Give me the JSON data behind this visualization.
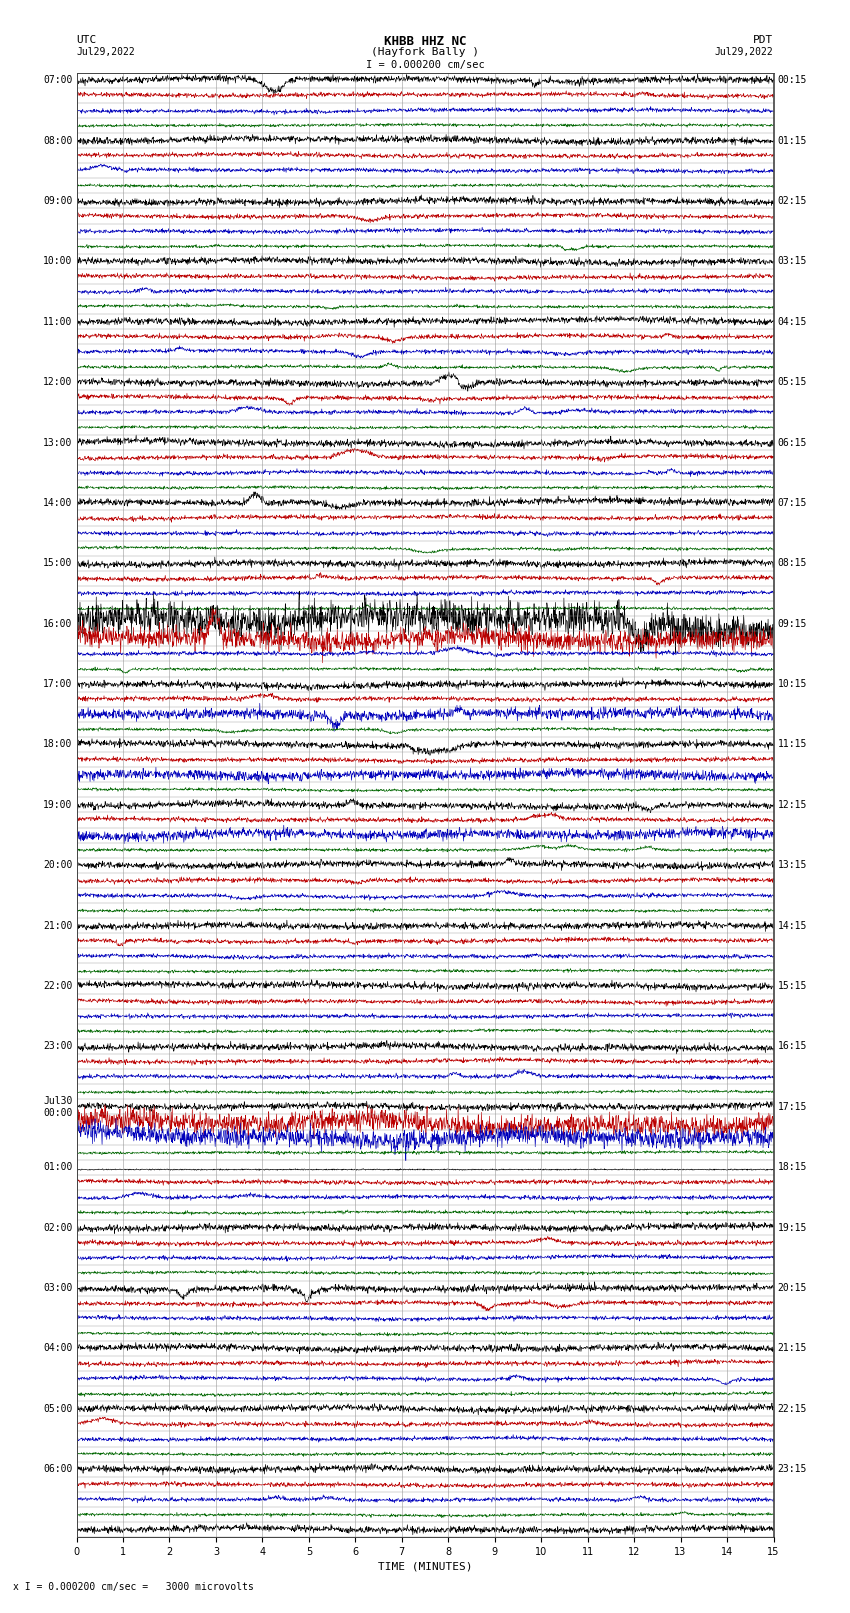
{
  "title_line1": "KHBB HHZ NC",
  "title_line2": "(Hayfork Bally )",
  "scale_label": "I = 0.000200 cm/sec",
  "utc_label": "UTC",
  "pdt_label": "PDT",
  "date_left": "Jul29,2022",
  "date_right": "Jul29,2022",
  "xlabel": "TIME (MINUTES)",
  "footer": "x I = 0.000200 cm/sec =   3000 microvolts",
  "xlim": [
    0,
    15
  ],
  "xticks": [
    0,
    1,
    2,
    3,
    4,
    5,
    6,
    7,
    8,
    9,
    10,
    11,
    12,
    13,
    14,
    15
  ],
  "trace_colors": [
    "#000000",
    "#bb0000",
    "#0000bb",
    "#006600"
  ],
  "background_color": "#ffffff",
  "grid_color": "#999999",
  "noise_amplitude": [
    0.3,
    0.2,
    0.18,
    0.13
  ],
  "left_utc_labels": [
    [
      "07:00",
      0
    ],
    [
      "08:00",
      4
    ],
    [
      "09:00",
      8
    ],
    [
      "10:00",
      12
    ],
    [
      "11:00",
      16
    ],
    [
      "12:00",
      20
    ],
    [
      "13:00",
      24
    ],
    [
      "14:00",
      28
    ],
    [
      "15:00",
      32
    ],
    [
      "16:00",
      36
    ],
    [
      "17:00",
      40
    ],
    [
      "18:00",
      44
    ],
    [
      "19:00",
      48
    ],
    [
      "20:00",
      52
    ],
    [
      "21:00",
      56
    ],
    [
      "22:00",
      60
    ],
    [
      "23:00",
      64
    ],
    [
      "Jul30\n00:00",
      68
    ],
    [
      "01:00",
      72
    ],
    [
      "02:00",
      76
    ],
    [
      "03:00",
      80
    ],
    [
      "04:00",
      84
    ],
    [
      "05:00",
      88
    ],
    [
      "06:00",
      92
    ]
  ],
  "right_pdt_labels": [
    [
      "00:15",
      0
    ],
    [
      "01:15",
      4
    ],
    [
      "02:15",
      8
    ],
    [
      "03:15",
      12
    ],
    [
      "04:15",
      16
    ],
    [
      "05:15",
      20
    ],
    [
      "06:15",
      24
    ],
    [
      "07:15",
      28
    ],
    [
      "08:15",
      32
    ],
    [
      "09:15",
      36
    ],
    [
      "10:15",
      40
    ],
    [
      "11:15",
      44
    ],
    [
      "12:15",
      48
    ],
    [
      "13:15",
      52
    ],
    [
      "14:15",
      56
    ],
    [
      "15:15",
      60
    ],
    [
      "16:15",
      64
    ],
    [
      "17:15",
      68
    ],
    [
      "18:15",
      72
    ],
    [
      "19:15",
      76
    ],
    [
      "20:15",
      80
    ],
    [
      "21:15",
      84
    ],
    [
      "22:15",
      88
    ],
    [
      "23:15",
      92
    ]
  ],
  "n_rows": 97,
  "high_amp_rows": [
    36,
    37,
    69,
    70
  ],
  "high_amp_mult": 5.0,
  "red_saturated_row": 72,
  "blue_high_rows": [
    40,
    41,
    42,
    43,
    44,
    45,
    46,
    47,
    48,
    49,
    50,
    51
  ],
  "blue_high_mult": 2.5
}
